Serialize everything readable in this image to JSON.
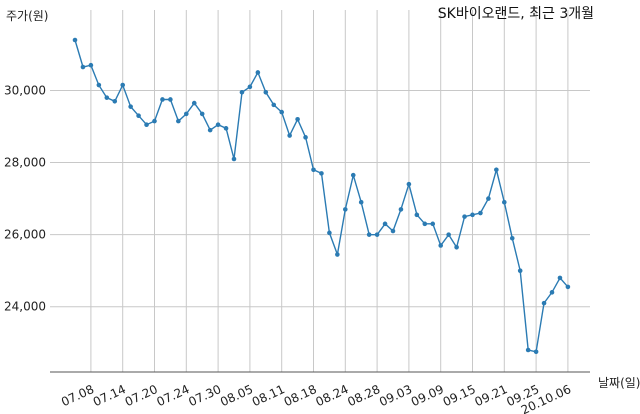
{
  "chart_data": {
    "type": "line",
    "title": "SK바이오랜드, 최근 3개월",
    "xlabel": "날짜(일)",
    "ylabel": "주가(원)",
    "ylim": [
      22800,
      30600
    ],
    "y_ticks": [
      "24,000",
      "26,000",
      "28,000",
      "30,000"
    ],
    "y_tick_values": [
      24000,
      26000,
      28000,
      30000
    ],
    "x_ticks": [
      "07.08",
      "07.14",
      "07.20",
      "07.24",
      "07.30",
      "08.05",
      "08.11",
      "08.18",
      "08.24",
      "08.28",
      "09.03",
      "09.09",
      "09.15",
      "09.21",
      "09.25",
      "20.10.06"
    ],
    "x_tick_indices": [
      2,
      6,
      10,
      14,
      18,
      22,
      26,
      30,
      34,
      38,
      42,
      46,
      50,
      54,
      58,
      62
    ],
    "grid": true,
    "series": [
      {
        "color": "#2b7bb3",
        "values": [
          31400,
          30650,
          30700,
          30150,
          29800,
          29700,
          30150,
          29550,
          29300,
          29050,
          29150,
          29750,
          29750,
          29150,
          29350,
          29650,
          29350,
          28900,
          29050,
          28950,
          28100,
          29950,
          30100,
          30500,
          29950,
          29600,
          29400,
          28750,
          29200,
          28700,
          27800,
          27700,
          26050,
          25450,
          26700,
          27650,
          26900,
          26000,
          26000,
          26300,
          26100,
          26700,
          27400,
          26550,
          26300,
          26300,
          25700,
          26000,
          25650,
          26500,
          26550,
          26600,
          27000,
          27800,
          26900,
          25900,
          25000,
          22800,
          22750,
          24100,
          24400,
          24800,
          24550
        ]
      }
    ]
  }
}
